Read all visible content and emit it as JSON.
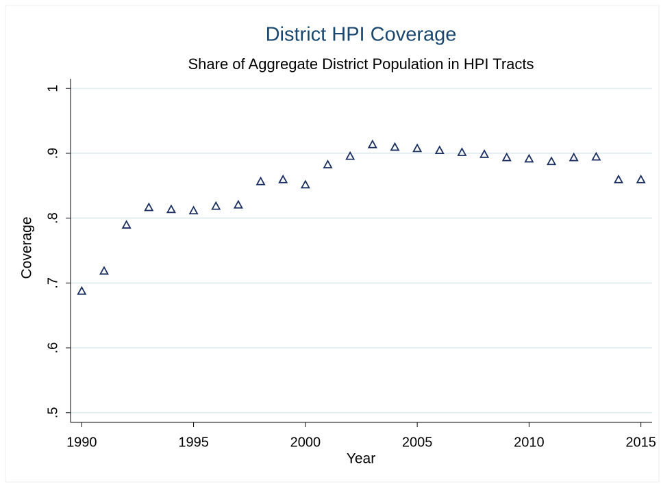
{
  "chart_data": {
    "type": "scatter",
    "title": "District HPI Coverage",
    "subtitle": "Share of Aggregate District Population in HPI Tracts",
    "x_label": "Year",
    "y_label": "Coverage",
    "series": [
      {
        "marker": "triangle-hollow",
        "color": "#1a2f5f",
        "x": [
          1990,
          1991,
          1992,
          1993,
          1994,
          1995,
          1996,
          1997,
          1998,
          1999,
          2000,
          2001,
          2002,
          2003,
          2004,
          2005,
          2006,
          2007,
          2008,
          2009,
          2010,
          2011,
          2012,
          2013,
          2014,
          2015
        ],
        "values": [
          0.687,
          0.718,
          0.789,
          0.816,
          0.813,
          0.811,
          0.818,
          0.82,
          0.856,
          0.859,
          0.851,
          0.882,
          0.895,
          0.913,
          0.909,
          0.907,
          0.904,
          0.901,
          0.898,
          0.893,
          0.891,
          0.887,
          0.893,
          0.894,
          0.859,
          0.859
        ]
      }
    ],
    "xlim": [
      1989.5,
      2015.5
    ],
    "xticks": [
      1990,
      1995,
      2000,
      2005,
      2010,
      2015
    ],
    "ylim": [
      0.485,
      1.015
    ],
    "yticks": [
      {
        "value": 0.5,
        "label": ".5"
      },
      {
        "value": 0.6,
        "label": ".6"
      },
      {
        "value": 0.7,
        "label": ".7"
      },
      {
        "value": 0.8,
        "label": ".8"
      },
      {
        "value": 0.9,
        "label": ".9"
      },
      {
        "value": 1,
        "label": "1"
      }
    ],
    "grid": true,
    "grid_color": "#e3eef0",
    "title_color": "#1a476f"
  }
}
